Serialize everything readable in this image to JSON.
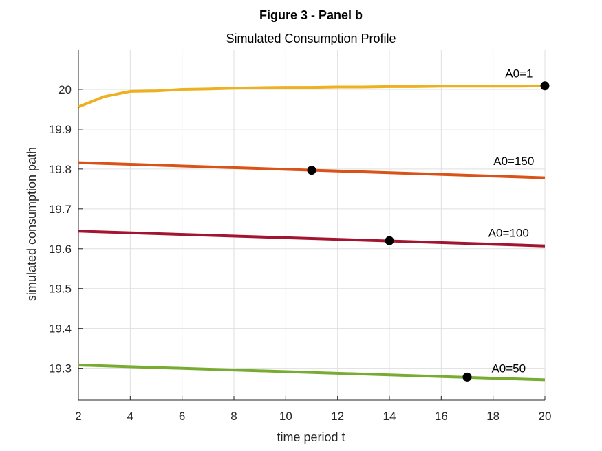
{
  "chart_data": {
    "type": "line",
    "title": "Figure 3 - Panel b",
    "subtitle": "Simulated Consumption Profile",
    "xlabel": "time period t",
    "ylabel": "simulated consumption path",
    "xlim": [
      2,
      20
    ],
    "ylim": [
      19.22,
      20.1
    ],
    "xticks": [
      2,
      4,
      6,
      8,
      10,
      12,
      14,
      16,
      18,
      20
    ],
    "yticks": [
      19.3,
      19.4,
      19.5,
      19.6,
      19.7,
      19.8,
      19.9,
      20
    ],
    "grid": true,
    "series": [
      {
        "name": "A0=1",
        "color": "#EDB120",
        "x": [
          2,
          3,
          4,
          5,
          6,
          7,
          8,
          9,
          10,
          11,
          12,
          13,
          14,
          15,
          16,
          17,
          18,
          19,
          20
        ],
        "values": [
          19.956,
          19.982,
          19.995,
          19.996,
          20.0,
          20.001,
          20.003,
          20.004,
          20.005,
          20.005,
          20.006,
          20.006,
          20.007,
          20.007,
          20.008,
          20.008,
          20.008,
          20.008,
          20.009
        ],
        "marker": {
          "x": 20,
          "y": 20.009
        },
        "label_at": {
          "x": 19.0,
          "y": 20.03
        }
      },
      {
        "name": "A0=150",
        "color": "#D95319",
        "x": [
          2,
          20
        ],
        "values": [
          19.816,
          19.778
        ],
        "marker": {
          "x": 11,
          "y": 19.797
        },
        "label_at": {
          "x": 18.8,
          "y": 19.81
        }
      },
      {
        "name": "A0=100",
        "color": "#A2142F",
        "x": [
          2,
          20
        ],
        "values": [
          19.644,
          19.607
        ],
        "marker": {
          "x": 14,
          "y": 19.62
        },
        "label_at": {
          "x": 18.6,
          "y": 19.63
        }
      },
      {
        "name": "A0=50",
        "color": "#77AC30",
        "x": [
          2,
          20
        ],
        "values": [
          19.308,
          19.271
        ],
        "marker": {
          "x": 17,
          "y": 19.278
        },
        "label_at": {
          "x": 18.6,
          "y": 19.29
        }
      }
    ]
  }
}
